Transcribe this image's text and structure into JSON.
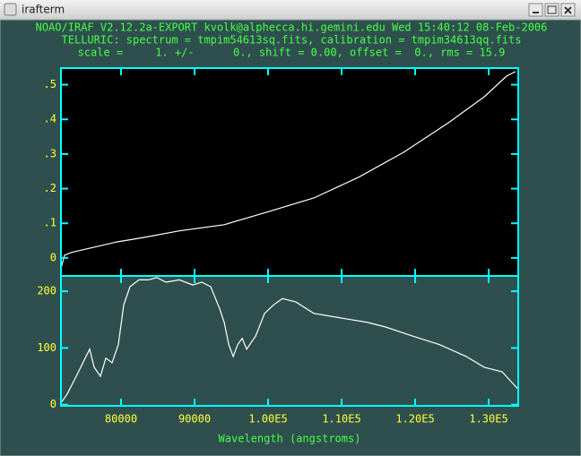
{
  "window": {
    "title": "irafterm"
  },
  "header": {
    "lines": [
      "NOAO/IRAF V2.12.2a-EXPORT kvolk@alphecca.hi.gemini.edu Wed 15:40:12 08-Feb-2006",
      "TELLURIC: spectrum = tmpim54613sq.fits, calibration = tmpim34613qq.fits",
      "scale =     1. +/-      0., shift = 0.00, offset =  0., rms = 15.9"
    ]
  },
  "chart_data": [
    {
      "type": "line",
      "background": "#000000",
      "axis_color": "#00ffff",
      "color": "#ffffff",
      "x": [
        71830,
        72320,
        73290,
        75730,
        79390,
        83050,
        87930,
        94030,
        100130,
        106220,
        112320,
        118420,
        124510,
        129390,
        132440,
        133660
      ],
      "values": [
        -0.031,
        0.008,
        0.016,
        0.028,
        0.046,
        0.059,
        0.078,
        0.096,
        0.134,
        0.173,
        0.233,
        0.305,
        0.39,
        0.465,
        0.525,
        0.538
      ],
      "xlim": [
        71830,
        134020
      ],
      "xticks": [
        80000,
        90000,
        100000,
        110000,
        120000,
        130000
      ],
      "ylim": [
        -0.052,
        0.548
      ],
      "yticks": [
        0,
        {
          "value": 0.1,
          "label": ".1"
        },
        {
          "value": 0.2,
          "label": ".2"
        },
        {
          "value": 0.3,
          "label": ".3"
        },
        {
          "value": 0.4,
          "label": ".4"
        },
        {
          "value": 0.5,
          "label": ".5"
        }
      ]
    },
    {
      "type": "line",
      "background": "#2f4f4f",
      "axis_color": "#00ffff",
      "color": "#ffffff",
      "x": [
        71830,
        72680,
        73900,
        75120,
        75730,
        76340,
        77190,
        77930,
        78780,
        79630,
        80370,
        81220,
        82440,
        83660,
        84880,
        86100,
        87930,
        89760,
        90980,
        92200,
        93410,
        94030,
        94640,
        95250,
        95860,
        96470,
        97080,
        98300,
        99520,
        100740,
        101960,
        103780,
        106220,
        109880,
        113530,
        115970,
        119630,
        123290,
        126950,
        129390,
        131830,
        134020
      ],
      "values": [
        3,
        19,
        50,
        82,
        98,
        66,
        50,
        82,
        74,
        106,
        176,
        208,
        220,
        220,
        224,
        216,
        220,
        211,
        216,
        208,
        169,
        145,
        106,
        85,
        106,
        117,
        98,
        121,
        161,
        176,
        187,
        181,
        161,
        153,
        145,
        137,
        121,
        106,
        85,
        66,
        58,
        27
      ],
      "xlim": [
        71830,
        134020
      ],
      "xticks": [
        80000,
        90000,
        {
          "value": 100000,
          "label": "1.00E5"
        },
        {
          "value": 110000,
          "label": "1.10E5"
        },
        {
          "value": 120000,
          "label": "1.20E5"
        },
        {
          "value": 130000,
          "label": "1.30E5"
        }
      ],
      "ylim": [
        -2,
        227
      ],
      "yticks": [
        0,
        100,
        200
      ],
      "xlabel": "Wavelength (angstroms)"
    }
  ]
}
